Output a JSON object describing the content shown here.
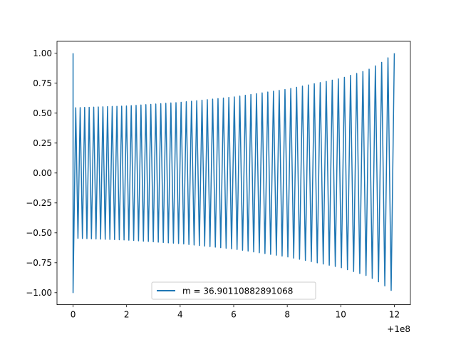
{
  "chart_data": {
    "type": "line",
    "title": "",
    "xlabel": "",
    "ylabel": "",
    "xlim": [
      -0.6,
      12.6
    ],
    "ylim": [
      -1.1,
      1.1
    ],
    "x_offset_label": "+1e8",
    "x_ticks": [
      0,
      2,
      4,
      6,
      8,
      10,
      12
    ],
    "x_tick_labels": [
      "0",
      "2",
      "4",
      "6",
      "8",
      "10",
      "12"
    ],
    "y_ticks": [
      1.0,
      0.75,
      0.5,
      0.25,
      0.0,
      -0.25,
      -0.5,
      -0.75,
      -1.0
    ],
    "y_tick_labels": [
      "1.00",
      "0.75",
      "0.50",
      "0.25",
      "0.00",
      "−0.25",
      "−0.50",
      "−0.75",
      "−1.00"
    ],
    "grid": false,
    "legend_position": "lower center",
    "series": [
      {
        "name": "m = 36.90110882891068",
        "color": "#1f77b4",
        "x_start": 0,
        "x_end": 12,
        "start_value": 1.0,
        "envelope_x": [
          0.1,
          2,
          4,
          6,
          8,
          10,
          11,
          11.5,
          12
        ],
        "envelope_y": [
          0.545,
          0.56,
          0.59,
          0.635,
          0.7,
          0.79,
          0.86,
          0.92,
          1.0
        ],
        "oscillation_count": 118
      }
    ]
  }
}
